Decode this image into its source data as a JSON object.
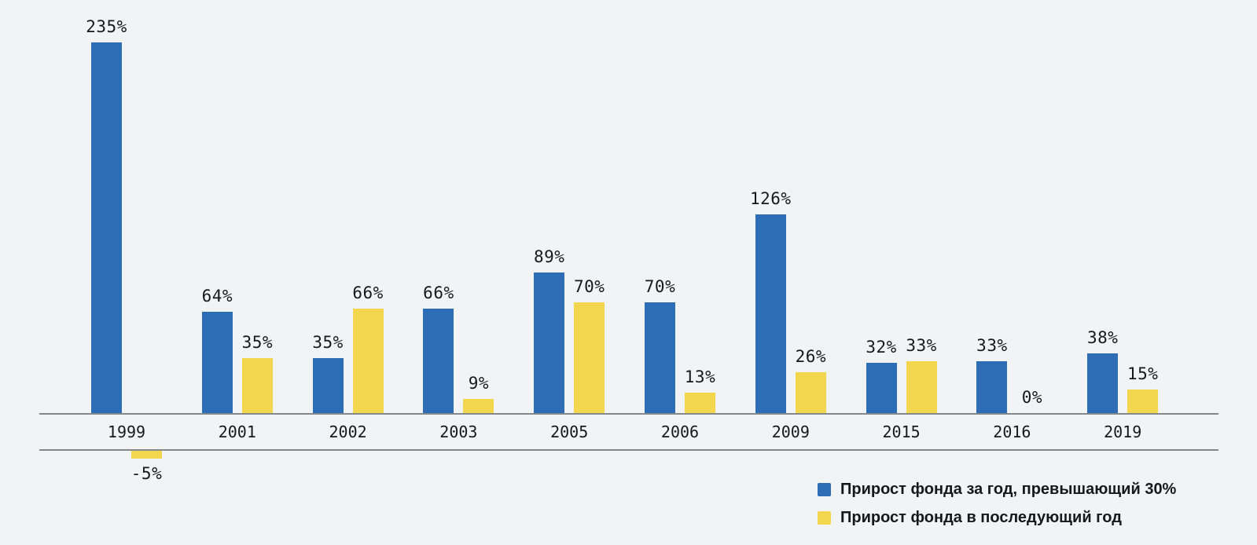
{
  "chart_data": {
    "type": "bar",
    "categories": [
      "1999",
      "2001",
      "2002",
      "2003",
      "2005",
      "2006",
      "2009",
      "2015",
      "2016",
      "2019"
    ],
    "series": [
      {
        "name": "Прирост фонда за год, превышающий 30%",
        "color": "#2d6db5",
        "values": [
          235,
          64,
          35,
          66,
          89,
          70,
          126,
          32,
          33,
          38
        ],
        "labels": [
          "235%",
          "64%",
          "35%",
          "66%",
          "89%",
          "70%",
          "126%",
          "32%",
          "33%",
          "38%"
        ]
      },
      {
        "name": "Прирост фонда в последующий год",
        "color": "#f2d74e",
        "values": [
          -5,
          35,
          66,
          9,
          70,
          13,
          26,
          33,
          0,
          15
        ],
        "labels": [
          "-5%",
          "35%",
          "66%",
          "9%",
          "70%",
          "13%",
          "26%",
          "33%",
          "0%",
          "15%"
        ]
      }
    ],
    "title": "",
    "xlabel": "",
    "ylabel": "",
    "ylim": [
      -5,
      235
    ],
    "grid": false,
    "legend_position": "bottom-right",
    "value_label_suffix": "%"
  },
  "legend": {
    "items": [
      {
        "label": "Прирост фонда за год, превышающий 30%",
        "color": "#2d6db5"
      },
      {
        "label": "Прирост фонда в последующий год",
        "color": "#f2d74e"
      }
    ]
  },
  "colors": {
    "background": "#f1f3f5",
    "axis_line": "#85888a",
    "text": "#17181a",
    "bar_blue": "#2d6db5",
    "bar_yellow": "#f2d74e"
  }
}
